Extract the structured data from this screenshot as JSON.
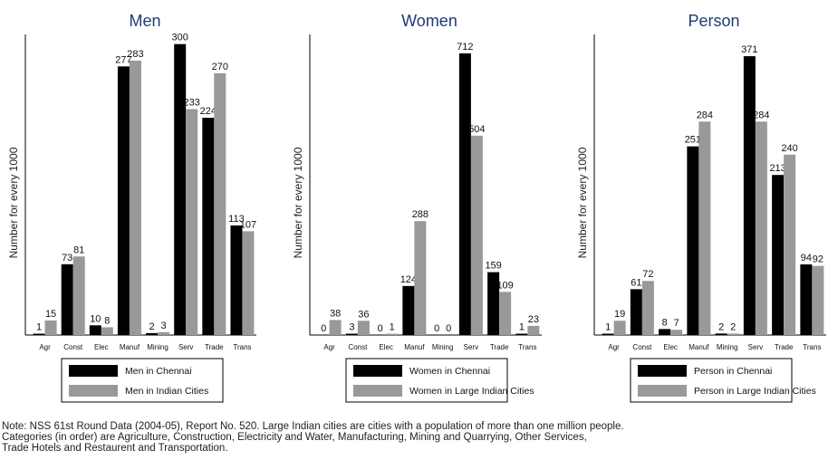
{
  "colors": {
    "primary": "#000000",
    "secondary": "#999999",
    "title": "#1f3a7a"
  },
  "categories": [
    "Agr",
    "Const",
    "Elec",
    "Manuf",
    "Mining",
    "Serv",
    "Trade",
    "Trans"
  ],
  "chart_data": [
    {
      "type": "bar",
      "title": "Men",
      "ylabel": "Number for every 1000",
      "xlabel": "",
      "ylim": [
        0,
        310
      ],
      "categories": [
        "Agr",
        "Const",
        "Elec",
        "Manuf",
        "Mining",
        "Serv",
        "Trade",
        "Trans"
      ],
      "series": [
        {
          "name": "Men in Chennai",
          "values": [
            1,
            73,
            10,
            277,
            2,
            300,
            224,
            113
          ],
          "labels": [
            "1",
            "73",
            "10",
            "277",
            "2",
            "300",
            "224",
            "113"
          ]
        },
        {
          "name": "Men in Indian Cities",
          "values": [
            15,
            81,
            8,
            283,
            3,
            233,
            270,
            107
          ],
          "labels": [
            "15",
            "81",
            "8",
            "283",
            "3",
            "233",
            "270",
            "107"
          ]
        }
      ],
      "legend": "bottom"
    },
    {
      "type": "bar",
      "title": "Women",
      "ylabel": "Number for every 1000",
      "xlabel": "",
      "ylim": [
        0,
        760
      ],
      "categories": [
        "Agr",
        "Const",
        "Elec",
        "Manuf",
        "Mining",
        "Serv",
        "Trade",
        "Trans"
      ],
      "series": [
        {
          "name": "Women in Chennai",
          "values": [
            0,
            3,
            0,
            124,
            0,
            712,
            159,
            1
          ],
          "labels": [
            "0",
            "3",
            "0",
            "124",
            "0",
            "712",
            "159",
            "1"
          ]
        },
        {
          "name": "Women in Large Indian Cities",
          "values": [
            38,
            36,
            1,
            288,
            0,
            504,
            109,
            23
          ],
          "labels": [
            "38",
            "36",
            "1",
            "288",
            "0",
            "504",
            "109",
            "23"
          ]
        }
      ],
      "legend": "bottom"
    },
    {
      "type": "bar",
      "title": "Person",
      "ylabel": "Number for every 1000",
      "xlabel": "",
      "ylim": [
        0,
        400
      ],
      "categories": [
        "Agr",
        "Const",
        "Elec",
        "Manuf",
        "Mining",
        "Serv",
        "Trade",
        "Trans"
      ],
      "series": [
        {
          "name": "Person in Chennai",
          "values": [
            1,
            61,
            8,
            251,
            2,
            371,
            213,
            94
          ],
          "labels": [
            "1",
            "61",
            "8",
            "251",
            "2",
            "371",
            "213",
            "94"
          ]
        },
        {
          "name": "Person in Large Indian Cities",
          "values": [
            19,
            72,
            7,
            284,
            2,
            284,
            240,
            92
          ],
          "labels": [
            "19",
            "72",
            "7",
            "284",
            "2",
            "284",
            "240",
            "92"
          ]
        }
      ],
      "legend": "bottom"
    }
  ],
  "note": {
    "line1": "Note: NSS 61st Round Data (2004-05), Report No. 520. Large Indian cities are cities with a population of more than one million people.",
    "line2": "Categories (in order) are Agriculture, Construction, Electricity and Water, Manufacturing, Mining and Quarrying, Other Services,",
    "line3": "Trade Hotels and Restaurent and Transportation."
  }
}
